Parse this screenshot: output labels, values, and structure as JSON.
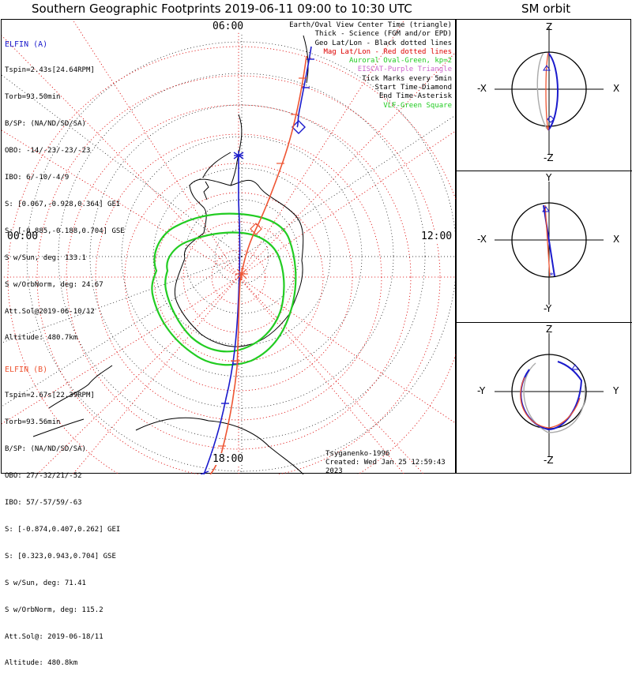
{
  "title": "Southern Geographic Footprints 2019-06-11 09:00 to 10:30 UTC",
  "sm_title": "SM orbit",
  "time_labels": {
    "top": "06:00",
    "left": "00:00",
    "right": "12:00",
    "bottom": "18:00"
  },
  "elfin_a": {
    "name": "ELFIN (A)",
    "color": "#1a1acc",
    "lines": [
      "Tspin=2.43s[24.64RPM]",
      "Torb=93.50min",
      "B/SP: (NA/ND/SD/SA)",
      "OBO: -14/-23/-23/-23",
      "IBO: 6/-10/-4/9",
      "S: [0.067,-0.928,0.364] GEI",
      "S: [-0.885,-0.188,0.704] GSE",
      "S w/Sun, deg: 133.1",
      "S w/OrbNorm, deg: 24.67",
      "Att.Sol@2019-06-10/12",
      "Altitude: 480.7km"
    ]
  },
  "elfin_b": {
    "name": "ELFIN (B)",
    "color": "#ee5533",
    "lines": [
      "Tspin=2.67s[22.39RPM]",
      "Torb=93.56min",
      "B/SP: (NA/ND/SD/SA)",
      "OBO: 27/-32/21/-52",
      "IBO: 57/-57/59/-63",
      "S: [-0.874,0.407,0.262] GEI",
      "S: [0.323,0.943,0.704] GSE",
      "S w/Sun, deg: 71.41",
      "S w/OrbNorm, deg: 115.2",
      "Att.Sol@: 2019-06-18/11",
      "Altitude: 480.8km"
    ]
  },
  "legend": [
    {
      "text": "Earth/Oval View Center Time (triangle)",
      "color": "#000000"
    },
    {
      "text": "Thick - Science (FGM and/or EPD)",
      "color": "#000000"
    },
    {
      "text": "Geo Lat/Lon - Black dotted lines",
      "color": "#000000"
    },
    {
      "text": "Mag Lat/Lon - Red dotted lines",
      "color": "#dd0000"
    },
    {
      "text": "Auroral Oval-Green, kp=2",
      "color": "#22cc22"
    },
    {
      "text": "EISCAT-Purple Triangle",
      "color": "#cc66cc"
    },
    {
      "text": "Tick Marks every 5min",
      "color": "#000000"
    },
    {
      "text": "Start Time-Diamond",
      "color": "#000000"
    },
    {
      "text": "End Time-Asterisk",
      "color": "#000000"
    },
    {
      "text": "VLF-Green Square",
      "color": "#22cc22"
    }
  ],
  "credit": {
    "model": "Tsyganenko-1996",
    "created": "Created: Wed Jan 25 12:59:43 2023"
  },
  "orbit_panels": [
    {
      "top": "Z",
      "bottom": "-Z",
      "left": "-X",
      "right": "X"
    },
    {
      "top": "Y",
      "bottom": "-Y",
      "left": "-X",
      "right": "X"
    },
    {
      "top": "Z",
      "bottom": "-Z",
      "left": "-Y",
      "right": "Y"
    }
  ],
  "colors": {
    "sat_a": "#1a1acc",
    "sat_b": "#ee5533",
    "oval": "#22cc22",
    "mag_grid": "#dd0000"
  }
}
